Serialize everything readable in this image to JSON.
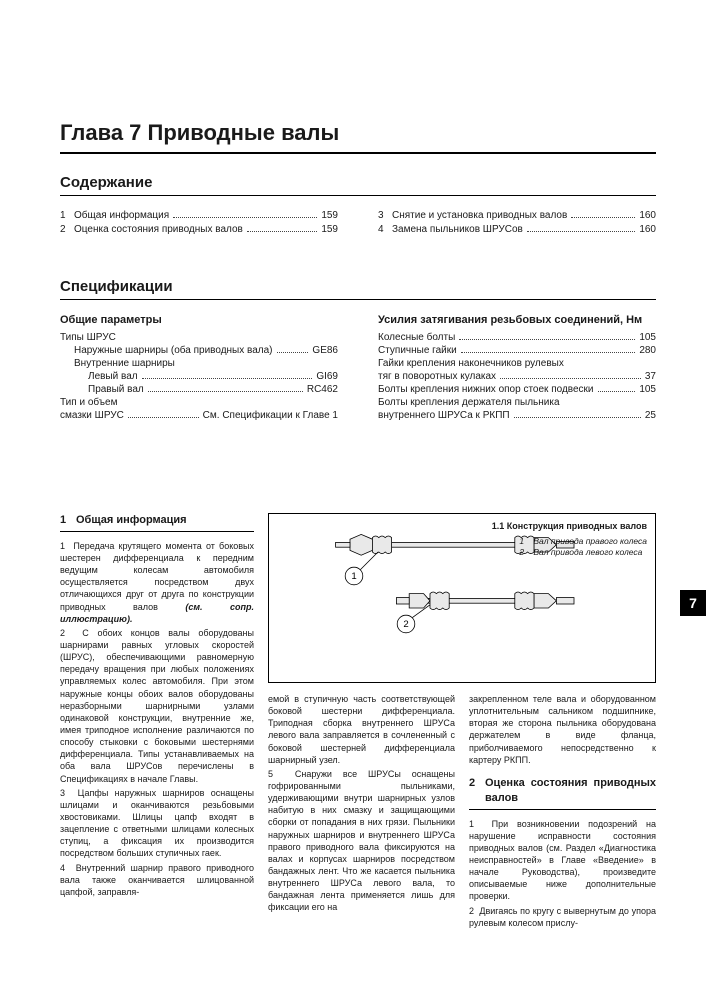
{
  "chapter": {
    "title": "Глава 7 Приводные валы"
  },
  "toc": {
    "heading": "Содержание",
    "left": [
      {
        "n": "1",
        "label": "Общая информация",
        "page": "159"
      },
      {
        "n": "2",
        "label": "Оценка состояния приводных валов",
        "page": "159"
      }
    ],
    "right": [
      {
        "n": "3",
        "label": "Снятие и установка приводных валов",
        "page": "160"
      },
      {
        "n": "4",
        "label": "Замена пыльников ШРУСов",
        "page": "160"
      }
    ]
  },
  "spec": {
    "heading": "Спецификации",
    "left": {
      "subhead": "Общие параметры",
      "rows": [
        {
          "label": "Типы ШРУС",
          "val": "",
          "indent": 0,
          "dots": false
        },
        {
          "label": "Наружные шарниры (оба приводных вала)",
          "val": "GE86",
          "indent": 1,
          "dots": true
        },
        {
          "label": "Внутренние шарниры",
          "val": "",
          "indent": 1,
          "dots": false
        },
        {
          "label": "Левый вал",
          "val": "GI69",
          "indent": 2,
          "dots": true
        },
        {
          "label": "Правый вал",
          "val": "RC462",
          "indent": 2,
          "dots": true
        },
        {
          "label": "Тип и объем",
          "val": "",
          "indent": 0,
          "dots": false
        },
        {
          "label": "смазки ШРУС",
          "val": "См. Спецификации к Главе 1",
          "indent": 0,
          "dots": true
        }
      ]
    },
    "right": {
      "subhead": "Усилия затягивания резьбовых соединений, Нм",
      "rows": [
        {
          "label": "Колесные болты",
          "val": "105",
          "indent": 0,
          "dots": true
        },
        {
          "label": "Ступичные гайки",
          "val": "280",
          "indent": 0,
          "dots": true
        },
        {
          "label": "Гайки крепления наконечников рулевых",
          "val": "",
          "indent": 0,
          "dots": false
        },
        {
          "label": "тяг в поворотных кулаках",
          "val": "37",
          "indent": 0,
          "dots": true
        },
        {
          "label": "Болты крепления нижних опор стоек подвески",
          "val": "105",
          "indent": 0,
          "dots": true
        },
        {
          "label": "Болты крепления держателя пыльника",
          "val": "",
          "indent": 0,
          "dots": false
        },
        {
          "label": "внутреннего ШРУСа к РКПП",
          "val": "25",
          "indent": 0,
          "dots": true
        }
      ]
    }
  },
  "sections": {
    "s1": {
      "num": "1",
      "title": "Общая информация"
    },
    "s2": {
      "num": "2",
      "title": "Оценка состояния приводных валов"
    }
  },
  "figure": {
    "caption": "1.1 Конструкция приводных валов",
    "legend": [
      {
        "k": "1",
        "t": "Вал привода правого колеса"
      },
      {
        "k": "2",
        "t": "Вал привода левого колеса"
      }
    ],
    "callouts": [
      "1",
      "2"
    ]
  },
  "body": {
    "col1": [
      {
        "n": "1",
        "t": "Передача крутящего момента от боковых шестерен дифференциала к передним ведущим колесам автомобиля осуществляется посредством двух отличающихся друг от друга по конструкции приводных валов ",
        "em": "(см. сопр. иллюстрацию)."
      },
      {
        "n": "2",
        "t": "С обоих концов валы оборудованы шарнирами равных угловых скоростей (ШРУС), обеспечивающими равномерную передачу вращения при любых положениях управляемых колес автомобиля. При этом наружные концы обоих валов оборудованы неразборными шарнирными узлами одинаковой конструкции, внутренние же, имея триподное исполнение различаются по способу стыковки с боковыми шестернями дифференциала. Типы устанавливаемых на оба вала ШРУСов перечислены в Спецификациях в начале Главы."
      },
      {
        "n": "3",
        "t": "Цапфы наружных шарниров оснащены шлицами и оканчиваются резьбовыми хвостовиками. Шлицы цапф входят в зацепление с ответными шлицами колесных ступиц, а фиксация их производится посредством больших ступичных гаек."
      },
      {
        "n": "4",
        "t": "Внутренний шарнир правого приводного вала также оканчивается шлицованной цапфой, заправля-"
      }
    ],
    "col2a": [
      {
        "n": "",
        "t": "емой в ступичную часть соответствующей боковой шестерни дифференциала. Триподная сборка внутреннего ШРУСа левого вала заправляется в сочлененный с боковой шестерней дифференциала шарнирный узел."
      },
      {
        "n": "5",
        "t": "Снаружи все ШРУСы оснащены гофрированными пыльниками, удерживающими внутри шарнирных узлов набитую в них смазку и защищающими сборки от попадания в них грязи. Пыльники наружных шарниров и внутреннего ШРУСа правого приводного вала фиксируются на валах и корпусах шарниров посредством бандажных лент. Что же касается пыльника внутреннего ШРУСа левого вала, то бандажная лента применяется лишь для фиксации его на"
      }
    ],
    "col3a": [
      {
        "n": "",
        "t": "закрепленном теле вала и оборудованном уплотнительным сальником подшипнике, вторая же сторона пыльника оборудована держателем в виде фланца, приболчиваемого непосредственно к картеру РКПП."
      }
    ],
    "col3b": [
      {
        "n": "1",
        "t": "При возникновении подозрений на нарушение исправности состояния приводных валов (см. Раздел «Диагностика неисправностей» в Главе «Введение» в начале Руководства), произведите описываемые ниже дополнительные проверки."
      },
      {
        "n": "2",
        "t": "Двигаясь по кругу с вывернутым до упора рулевым колесом прислу-"
      }
    ]
  },
  "sidetab": "7",
  "colors": {
    "text": "#1a1a1a",
    "rule": "#000000",
    "dots": "#444444"
  }
}
